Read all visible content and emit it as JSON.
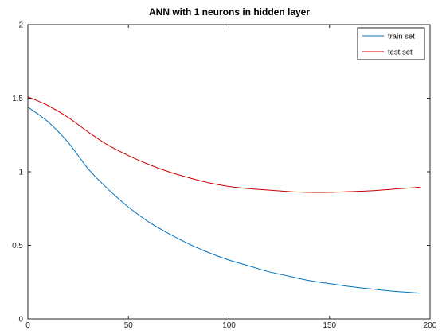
{
  "chart_data": {
    "type": "line",
    "title": "ANN with 1 neurons in hidden layer",
    "xlabel": "",
    "ylabel": "",
    "xlim": [
      0,
      200
    ],
    "ylim": [
      0,
      2
    ],
    "xticks": [
      0,
      50,
      100,
      150,
      200
    ],
    "yticks": [
      0,
      0.5,
      1,
      1.5,
      2
    ],
    "xtick_labels": [
      "0",
      "50",
      "100",
      "150",
      "200"
    ],
    "ytick_labels": [
      "0",
      "0.5",
      "1",
      "1.5",
      "2"
    ],
    "grid": false,
    "legend_position": "top-right",
    "x": [
      0,
      10,
      20,
      30,
      40,
      50,
      60,
      70,
      80,
      90,
      100,
      110,
      120,
      130,
      140,
      150,
      160,
      170,
      180,
      190,
      195
    ],
    "series": [
      {
        "name": "train set",
        "color": "#0072bd",
        "values": [
          1.44,
          1.34,
          1.2,
          1.02,
          0.88,
          0.76,
          0.66,
          0.58,
          0.51,
          0.45,
          0.4,
          0.36,
          0.32,
          0.29,
          0.26,
          0.24,
          0.22,
          0.205,
          0.19,
          0.18,
          0.175
        ]
      },
      {
        "name": "test set",
        "color": "#cc0000",
        "values": [
          1.51,
          1.45,
          1.37,
          1.27,
          1.18,
          1.11,
          1.05,
          1.0,
          0.96,
          0.925,
          0.9,
          0.885,
          0.875,
          0.865,
          0.86,
          0.86,
          0.865,
          0.87,
          0.88,
          0.89,
          0.895
        ]
      }
    ]
  }
}
